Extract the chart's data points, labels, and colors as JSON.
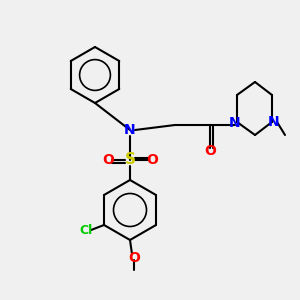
{
  "background_color": "#f0f0f0",
  "bond_color": "#000000",
  "atom_colors": {
    "N": "#0000ff",
    "O": "#ff0000",
    "S": "#cccc00",
    "Cl": "#00cc00",
    "C": "#000000"
  },
  "title": "",
  "figsize": [
    3.0,
    3.0
  ],
  "dpi": 100
}
